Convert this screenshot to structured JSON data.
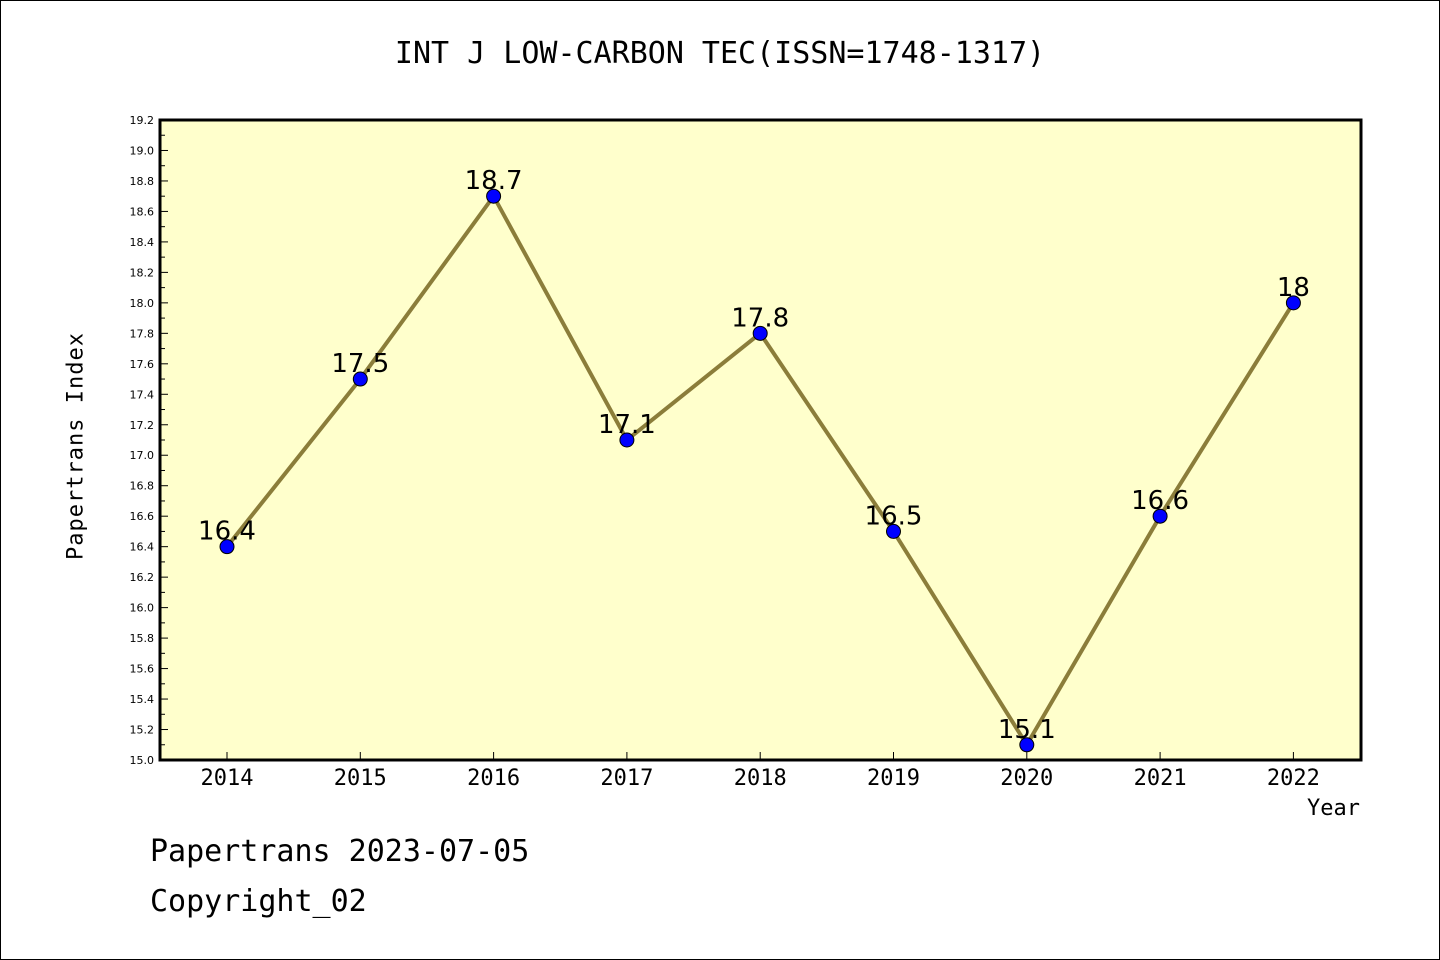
{
  "title": "INT J LOW-CARBON TEC(ISSN=1748-1317)",
  "footer": {
    "line1": "Papertrans 2023-07-05",
    "line2": "Copyright_02"
  },
  "colors": {
    "plot_background": "#ffffcc",
    "line": "#8b7d3a",
    "marker": "#0000ff"
  },
  "chart_data": {
    "type": "line",
    "title": "INT J LOW-CARBON TEC(ISSN=1748-1317)",
    "xlabel": "Year",
    "ylabel": "Papertrans Index",
    "categories": [
      "2014",
      "2015",
      "2016",
      "2017",
      "2018",
      "2019",
      "2020",
      "2021",
      "2022"
    ],
    "values": [
      16.4,
      17.5,
      18.7,
      17.1,
      17.8,
      16.5,
      15.1,
      16.6,
      18
    ],
    "data_labels": [
      "16.4",
      "17.5",
      "18.7",
      "17.1",
      "17.8",
      "16.5",
      "15.1",
      "16.6",
      "18"
    ],
    "ylim": [
      15.0,
      19.2
    ],
    "yticks": [
      "15.0",
      "15.2",
      "15.4",
      "15.6",
      "15.8",
      "16.0",
      "16.2",
      "16.4",
      "16.6",
      "16.8",
      "17.0",
      "17.2",
      "17.4",
      "17.6",
      "17.8",
      "18.0",
      "18.2",
      "18.4",
      "18.6",
      "18.8",
      "19.0",
      "19.2"
    ],
    "grid": false,
    "legend": "none"
  }
}
